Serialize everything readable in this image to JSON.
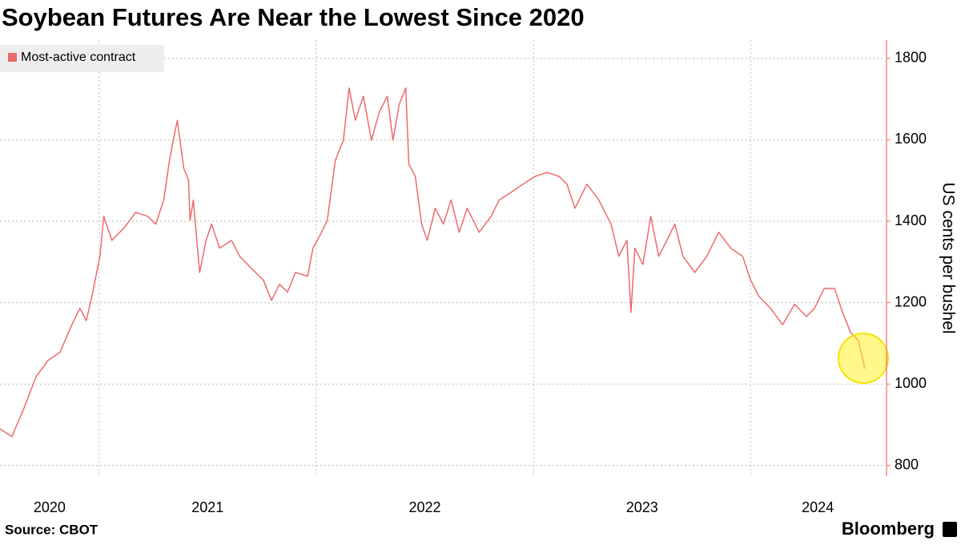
{
  "chart_data": {
    "type": "line",
    "title": "Soybean Futures Are Near the Lowest Since 2020",
    "y_axis_label": "US cents per bushel",
    "source": "Source: CBOT",
    "brand": "Bloomberg",
    "x": [
      2020.544,
      2020.599,
      2020.654,
      2020.71,
      2020.765,
      2020.82,
      2020.875,
      2020.912,
      2020.941,
      2020.967,
      2021.004,
      2021.022,
      2021.059,
      2021.114,
      2021.169,
      2021.224,
      2021.261,
      2021.298,
      2021.324,
      2021.36,
      2021.39,
      2021.412,
      2021.419,
      2021.434,
      2021.463,
      2021.493,
      2021.518,
      2021.555,
      2021.61,
      2021.647,
      2021.702,
      2021.757,
      2021.794,
      2021.831,
      2021.868,
      2021.904,
      2021.96,
      2021.985,
      2022.015,
      2022.051,
      2022.088,
      2022.125,
      2022.151,
      2022.18,
      2022.217,
      2022.254,
      2022.29,
      2022.327,
      2022.353,
      2022.382,
      2022.412,
      2022.426,
      2022.456,
      2022.485,
      2022.511,
      2022.548,
      2022.585,
      2022.621,
      2022.658,
      2022.695,
      2022.75,
      2022.805,
      2022.842,
      2022.897,
      2022.952,
      2023.007,
      2023.063,
      2023.118,
      2023.154,
      2023.191,
      2023.246,
      2023.301,
      2023.357,
      2023.393,
      2023.43,
      2023.449,
      2023.467,
      2023.504,
      2023.54,
      2023.577,
      2023.614,
      2023.651,
      2023.688,
      2023.743,
      2023.798,
      2023.853,
      2023.908,
      2023.963,
      2024.0,
      2024.037,
      2024.092,
      2024.147,
      2024.202,
      2024.257,
      2024.294,
      2024.338,
      2024.386,
      2024.423,
      2024.46,
      2024.496,
      2024.526
    ],
    "series": [
      {
        "name": "Most-active contract",
        "color": "#ee6a6a",
        "values": [
          890,
          871,
          940,
          1018,
          1058,
          1078,
          1146,
          1186,
          1156,
          1215,
          1314,
          1412,
          1353,
          1383,
          1422,
          1412,
          1393,
          1452,
          1550,
          1648,
          1530,
          1501,
          1402,
          1452,
          1274,
          1353,
          1393,
          1334,
          1353,
          1314,
          1284,
          1255,
          1206,
          1245,
          1226,
          1274,
          1265,
          1334,
          1363,
          1402,
          1550,
          1599,
          1727,
          1648,
          1707,
          1599,
          1668,
          1707,
          1599,
          1687,
          1727,
          1540,
          1510,
          1393,
          1353,
          1432,
          1393,
          1452,
          1373,
          1432,
          1373,
          1412,
          1452,
          1471,
          1491,
          1510,
          1520,
          1510,
          1491,
          1432,
          1491,
          1452,
          1393,
          1314,
          1353,
          1176,
          1334,
          1294,
          1412,
          1314,
          1353,
          1393,
          1314,
          1274,
          1314,
          1373,
          1334,
          1314,
          1255,
          1216,
          1186,
          1146,
          1196,
          1166,
          1186,
          1235,
          1235,
          1176,
          1127,
          1107,
          1038
        ]
      }
    ],
    "xlim": [
      2020.544,
      2024.618
    ],
    "xticks": [
      2021,
      2022,
      2023,
      2024
    ],
    "year_labels": [
      2020,
      2021,
      2022,
      2023,
      2024
    ],
    "ylim": [
      776,
      1845
    ],
    "yticks": [
      800,
      1000,
      1200,
      1400,
      1600,
      1800
    ],
    "grid": true,
    "legend": "top-left"
  }
}
